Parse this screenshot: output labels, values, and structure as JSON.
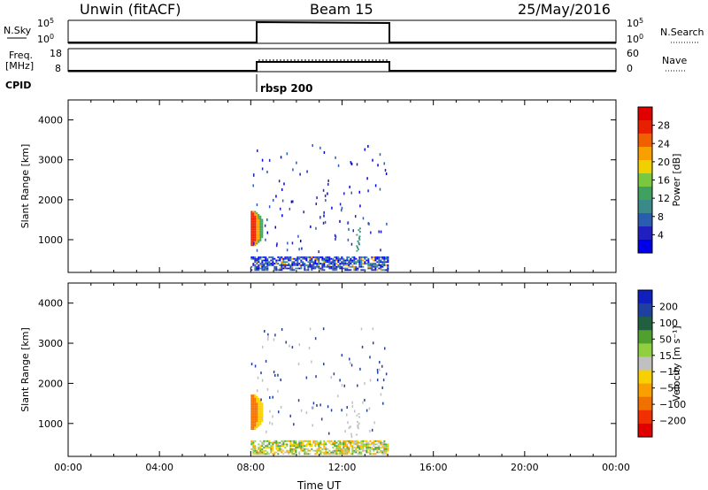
{
  "header": {
    "station": "Unwin (fitACF)",
    "beam": "Beam 15",
    "date": "25/May/2016"
  },
  "top_panels": {
    "nsky": {
      "label": "N.Sky",
      "tick_top": "10^5",
      "tick_bottom": "10^0"
    },
    "nsearch": {
      "label": "N.Search",
      "tick_top": "10^5",
      "tick_bottom": "10^0"
    },
    "freq": {
      "label_line1": "Freq.",
      "label_line2": "[MHz]",
      "tick_top": "18",
      "tick_bottom": "8"
    },
    "nave": {
      "label": "Nave",
      "tick_top": "60",
      "tick_bottom": "0"
    },
    "cpid": {
      "label": "CPID",
      "value": "rbsp 200"
    }
  },
  "chart_data": [
    {
      "type": "heatmap",
      "name": "power",
      "ylabel": "Slant Range [km]",
      "xlabel": "",
      "ylim": [
        180,
        4500
      ],
      "yticks": [
        1000,
        2000,
        3000,
        4000
      ],
      "xlim": [
        0,
        24
      ],
      "colorbar": {
        "label": "Power [dB]",
        "ticks": [
          4,
          8,
          12,
          16,
          20,
          24,
          28
        ],
        "colors": [
          "#0000e8",
          "#2020c0",
          "#2a5db0",
          "#3a8a8a",
          "#40a060",
          "#7ac840",
          "#f0d000",
          "#f8a000",
          "#f06000",
          "#e82000",
          "#e00000"
        ]
      },
      "data_window_hours": [
        8.0,
        14.0
      ]
    },
    {
      "type": "heatmap",
      "name": "velocity",
      "ylabel": "Slant Range [km]",
      "xlabel": "Time UT",
      "ylim": [
        180,
        4500
      ],
      "yticks": [
        1000,
        2000,
        3000,
        4000
      ],
      "xlim": [
        0,
        24
      ],
      "xticks": [
        "00:00",
        "04:00",
        "08:00",
        "12:00",
        "16:00",
        "20:00",
        "00:00"
      ],
      "colorbar": {
        "label": "Velocity [m s⁻¹]",
        "ticks": [
          "200",
          "100",
          "50",
          "15",
          "−15",
          "−50",
          "−100",
          "−200"
        ],
        "colors": [
          "#1020c0",
          "#2040a0",
          "#206040",
          "#50a030",
          "#90d040",
          "#c0c0c0",
          "#f8d000",
          "#f8a000",
          "#f07000",
          "#f03000",
          "#e00000"
        ]
      },
      "data_window_hours": [
        8.0,
        14.0
      ]
    }
  ]
}
